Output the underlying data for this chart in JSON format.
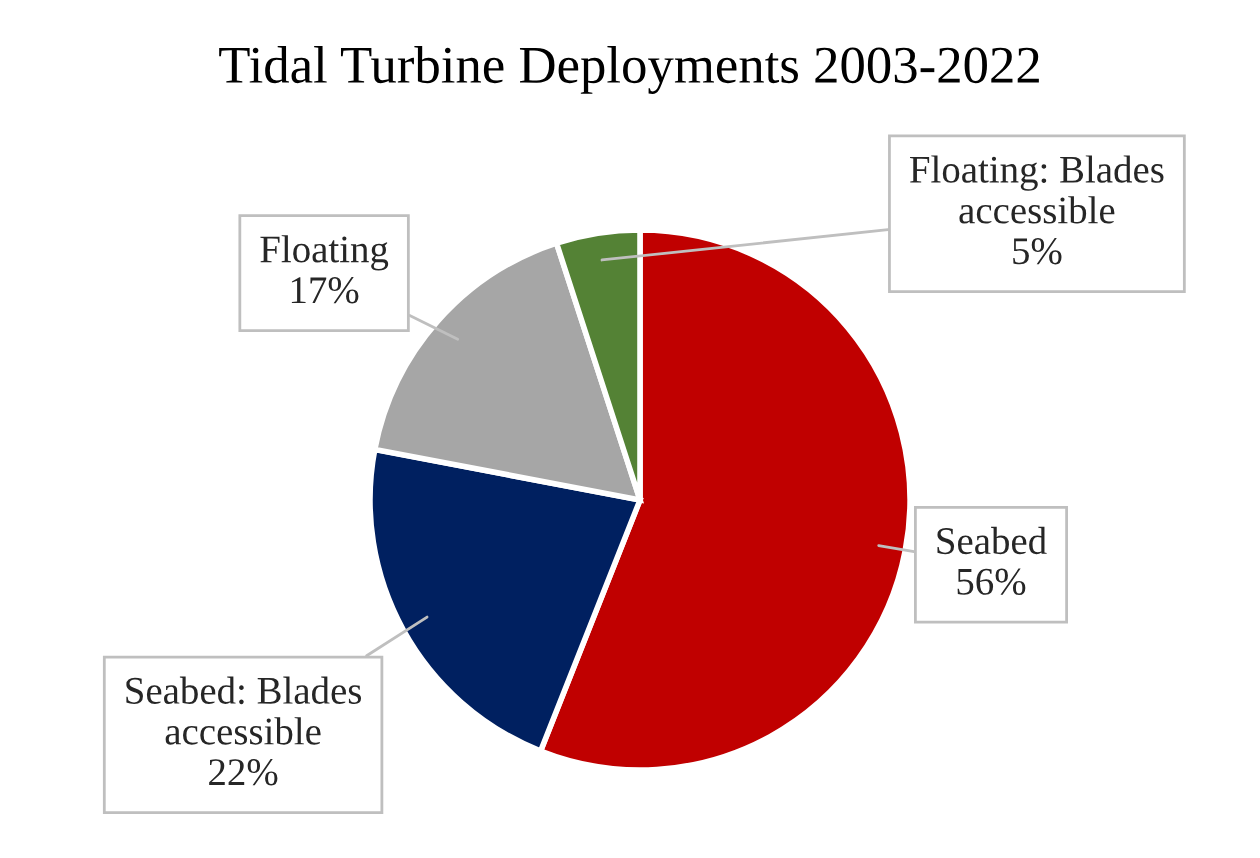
{
  "chart_data": {
    "type": "pie",
    "title": "Tidal Turbine Deployments 2003-2022",
    "categories": [
      "Seabed",
      "Seabed: Blades accessible",
      "Floating",
      "Floating: Blades accessible"
    ],
    "values": [
      56,
      22,
      17,
      5
    ],
    "colors": [
      "#c00000",
      "#002060",
      "#a6a6a6",
      "#548235"
    ],
    "value_labels": [
      "56%",
      "22%",
      "17%",
      "5%"
    ]
  }
}
